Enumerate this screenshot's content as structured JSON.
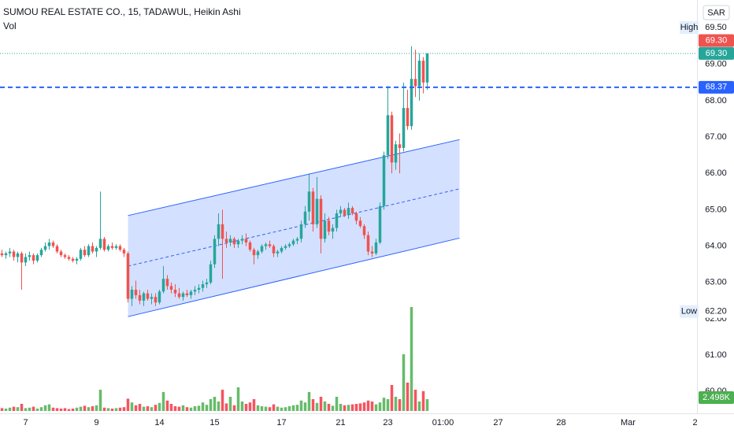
{
  "chart_data": {
    "type": "candlestick",
    "title": "SUMOU REAL ESTATE CO., 15, TADAWUL, Heikin Ashi",
    "volume_title": "Vol",
    "currency": "SAR",
    "up_color": "#26a69a",
    "down_color": "#ef5350",
    "volume_up_color": "#4caf50",
    "volume_down_color": "#f23645",
    "grid": false,
    "xlim": [
      -0.5,
      176.5
    ],
    "ylim": [
      59.4,
      70.77
    ],
    "vlim": [
      0,
      25000
    ],
    "xticks": [
      {
        "value": 6,
        "label": "7"
      },
      {
        "value": 24,
        "label": "9"
      },
      {
        "value": 40,
        "label": "14"
      },
      {
        "value": 54,
        "label": "15"
      },
      {
        "value": 71,
        "label": "17"
      },
      {
        "value": 86,
        "label": "21"
      },
      {
        "value": 98,
        "label": "23"
      },
      {
        "value": 112,
        "label": "01:00"
      },
      {
        "value": 126,
        "label": "27"
      },
      {
        "value": 142,
        "label": "28"
      },
      {
        "value": 159,
        "label": "Mar"
      },
      {
        "value": 176,
        "label": "2"
      }
    ],
    "yticks": [
      {
        "value": 60,
        "label": "60.00"
      },
      {
        "value": 61,
        "label": "61.00"
      },
      {
        "value": 62,
        "label": "62.00"
      },
      {
        "value": 63,
        "label": "63.00"
      },
      {
        "value": 64,
        "label": "64.00"
      },
      {
        "value": 65,
        "label": "65.00"
      },
      {
        "value": 66,
        "label": "66.00"
      },
      {
        "value": 67,
        "label": "67.00"
      },
      {
        "value": 68,
        "label": "68.00"
      },
      {
        "value": 69,
        "label": "69.00"
      }
    ],
    "high": {
      "name": "High",
      "value": 69.5,
      "label": "69.50"
    },
    "low": {
      "name": "Low",
      "value": 62.2,
      "label": "62.20"
    },
    "prev_close": {
      "value": 69.3,
      "label": "69.30"
    },
    "last_price": {
      "value": 69.3,
      "label": "69.30"
    },
    "price_line": 68.37,
    "volume_last": {
      "value": 2498,
      "label": "2.498K"
    },
    "channel": {
      "x": [
        32,
        116.2
      ],
      "upper": [
        64.84,
        66.93
      ],
      "lower": [
        62.06,
        64.22
      ]
    },
    "ohlc": [
      [
        63.8,
        63.9,
        63.7,
        63.75
      ],
      [
        63.75,
        63.85,
        63.65,
        63.8
      ],
      [
        63.8,
        63.95,
        63.7,
        63.85
      ],
      [
        63.85,
        63.9,
        63.6,
        63.7
      ],
      [
        63.7,
        63.85,
        63.55,
        63.8
      ],
      [
        63.8,
        63.85,
        62.8,
        63.55
      ],
      [
        63.55,
        63.8,
        63.45,
        63.7
      ],
      [
        63.7,
        63.85,
        63.6,
        63.75
      ],
      [
        63.75,
        63.8,
        63.5,
        63.6
      ],
      [
        63.6,
        63.8,
        63.55,
        63.75
      ],
      [
        63.75,
        63.95,
        63.7,
        63.9
      ],
      [
        63.9,
        64.1,
        63.85,
        64.0
      ],
      [
        64.0,
        64.2,
        63.9,
        64.1
      ],
      [
        64.1,
        64.15,
        63.95,
        64.0
      ],
      [
        64.0,
        64.05,
        63.8,
        63.85
      ],
      [
        63.85,
        63.9,
        63.7,
        63.75
      ],
      [
        63.75,
        63.8,
        63.65,
        63.7
      ],
      [
        63.7,
        63.75,
        63.6,
        63.65
      ],
      [
        63.65,
        63.7,
        63.55,
        63.6
      ],
      [
        63.6,
        63.7,
        63.5,
        63.65
      ],
      [
        63.65,
        63.95,
        63.6,
        63.9
      ],
      [
        63.9,
        64.0,
        63.7,
        63.75
      ],
      [
        63.75,
        64.05,
        63.7,
        64.0
      ],
      [
        64.0,
        64.1,
        63.8,
        63.85
      ],
      [
        63.85,
        64.0,
        63.7,
        63.95
      ],
      [
        63.95,
        65.5,
        63.9,
        64.2
      ],
      [
        64.2,
        64.25,
        63.85,
        63.9
      ],
      [
        63.9,
        64.05,
        63.85,
        64.0
      ],
      [
        64.0,
        64.1,
        63.9,
        63.95
      ],
      [
        63.95,
        64.05,
        63.9,
        64.0
      ],
      [
        64.0,
        64.05,
        63.85,
        63.9
      ],
      [
        63.9,
        63.95,
        63.7,
        63.8
      ],
      [
        63.8,
        63.85,
        62.45,
        62.55
      ],
      [
        62.55,
        62.9,
        62.35,
        62.8
      ],
      [
        62.8,
        63.05,
        62.55,
        62.65
      ],
      [
        62.65,
        62.8,
        62.4,
        62.5
      ],
      [
        62.5,
        62.75,
        62.35,
        62.7
      ],
      [
        62.7,
        62.8,
        62.5,
        62.55
      ],
      [
        62.55,
        62.7,
        62.4,
        62.6
      ],
      [
        62.6,
        62.7,
        62.35,
        62.45
      ],
      [
        62.45,
        62.8,
        62.4,
        62.75
      ],
      [
        62.75,
        63.45,
        62.7,
        63.1
      ],
      [
        63.1,
        63.2,
        62.8,
        62.9
      ],
      [
        62.9,
        63.0,
        62.7,
        62.8
      ],
      [
        62.8,
        62.95,
        62.6,
        62.7
      ],
      [
        62.7,
        62.85,
        62.55,
        62.6
      ],
      [
        62.6,
        62.75,
        62.5,
        62.7
      ],
      [
        62.7,
        62.8,
        62.6,
        62.65
      ],
      [
        62.65,
        62.8,
        62.55,
        62.75
      ],
      [
        62.75,
        62.9,
        62.65,
        62.8
      ],
      [
        62.8,
        62.95,
        62.7,
        62.85
      ],
      [
        62.85,
        63.05,
        62.75,
        62.95
      ],
      [
        62.95,
        63.1,
        62.85,
        63.0
      ],
      [
        63.0,
        63.6,
        62.95,
        63.5
      ],
      [
        63.5,
        64.3,
        63.4,
        64.2
      ],
      [
        64.2,
        64.9,
        64.0,
        64.6
      ],
      [
        64.6,
        65.0,
        63.1,
        64.2
      ],
      [
        64.2,
        64.4,
        63.95,
        64.1
      ],
      [
        64.1,
        64.3,
        64.0,
        64.2
      ],
      [
        64.2,
        64.25,
        63.95,
        64.05
      ],
      [
        64.05,
        64.2,
        63.95,
        64.15
      ],
      [
        64.15,
        64.3,
        64.05,
        64.2
      ],
      [
        64.2,
        64.35,
        64.0,
        64.1
      ],
      [
        64.1,
        64.15,
        63.85,
        63.9
      ],
      [
        63.9,
        63.95,
        63.5,
        63.75
      ],
      [
        63.75,
        63.9,
        63.65,
        63.85
      ],
      [
        63.85,
        64.05,
        63.8,
        64.0
      ],
      [
        64.0,
        64.1,
        63.9,
        64.05
      ],
      [
        64.05,
        64.15,
        63.95,
        64.0
      ],
      [
        64.0,
        64.05,
        63.7,
        63.8
      ],
      [
        63.8,
        63.9,
        63.7,
        63.85
      ],
      [
        63.85,
        64.0,
        63.8,
        63.95
      ],
      [
        63.95,
        64.05,
        63.9,
        64.0
      ],
      [
        64.0,
        64.1,
        63.95,
        64.05
      ],
      [
        64.05,
        64.2,
        64.0,
        64.15
      ],
      [
        64.15,
        64.25,
        64.05,
        64.2
      ],
      [
        64.2,
        64.7,
        64.1,
        64.6
      ],
      [
        64.6,
        65.1,
        64.5,
        64.95
      ],
      [
        64.95,
        66.0,
        64.7,
        65.5
      ],
      [
        65.5,
        65.6,
        64.4,
        64.6
      ],
      [
        64.6,
        65.9,
        64.5,
        65.3
      ],
      [
        65.3,
        65.4,
        63.8,
        64.2
      ],
      [
        64.2,
        64.9,
        64.1,
        64.7
      ],
      [
        64.7,
        64.8,
        64.3,
        64.4
      ],
      [
        64.4,
        64.6,
        64.2,
        64.5
      ],
      [
        64.5,
        65.0,
        64.4,
        64.9
      ],
      [
        64.9,
        65.1,
        64.8,
        65.0
      ],
      [
        65.0,
        65.05,
        64.8,
        64.85
      ],
      [
        64.85,
        65.2,
        64.75,
        65.05
      ],
      [
        65.05,
        65.1,
        64.85,
        64.9
      ],
      [
        64.9,
        64.95,
        64.6,
        64.7
      ],
      [
        64.7,
        64.8,
        64.5,
        64.55
      ],
      [
        64.55,
        64.6,
        64.2,
        64.3
      ],
      [
        64.3,
        64.4,
        63.75,
        63.85
      ],
      [
        63.85,
        64.0,
        63.7,
        63.8
      ],
      [
        63.8,
        64.2,
        63.75,
        64.1
      ],
      [
        64.1,
        65.2,
        64.05,
        65.1
      ],
      [
        65.1,
        66.6,
        65.0,
        66.5
      ],
      [
        66.5,
        68.4,
        66.4,
        67.6
      ],
      [
        67.6,
        67.7,
        66.0,
        66.3
      ],
      [
        66.3,
        66.9,
        66.1,
        66.8
      ],
      [
        66.8,
        67.1,
        66.0,
        66.7
      ],
      [
        66.7,
        68.5,
        66.6,
        67.8
      ],
      [
        67.8,
        68.3,
        67.2,
        67.3
      ],
      [
        67.3,
        69.5,
        67.2,
        68.6
      ],
      [
        68.6,
        69.4,
        68.1,
        68.4
      ],
      [
        68.4,
        69.3,
        68.0,
        69.1
      ],
      [
        69.1,
        69.2,
        68.2,
        68.5
      ],
      [
        68.5,
        69.3,
        68.3,
        69.3
      ]
    ],
    "volume": [
      600,
      500,
      700,
      900,
      800,
      1500,
      600,
      700,
      900,
      500,
      800,
      1200,
      1400,
      700,
      600,
      500,
      600,
      400,
      500,
      700,
      900,
      1100,
      800,
      1000,
      1200,
      4500,
      700,
      600,
      500,
      600,
      700,
      800,
      2600,
      1800,
      1200,
      1500,
      900,
      1000,
      800,
      1300,
      1700,
      4000,
      2200,
      1500,
      1000,
      900,
      1200,
      800,
      700,
      1000,
      1100,
      1800,
      1300,
      2500,
      3000,
      2000,
      4500,
      1600,
      3000,
      1200,
      5000,
      2000,
      1500,
      1800,
      2500,
      1200,
      1000,
      900,
      800,
      1400,
      900,
      700,
      800,
      1000,
      1200,
      1300,
      2200,
      1800,
      4000,
      2500,
      1700,
      3000,
      2000,
      1500,
      1100,
      3000,
      1500,
      1200,
      1300,
      1400,
      1500,
      1600,
      1800,
      2200,
      2000,
      1400,
      1800,
      2800,
      2500,
      5500,
      3000,
      2500,
      12000,
      6000,
      22000,
      4500,
      2000,
      4200,
      2498
    ]
  }
}
